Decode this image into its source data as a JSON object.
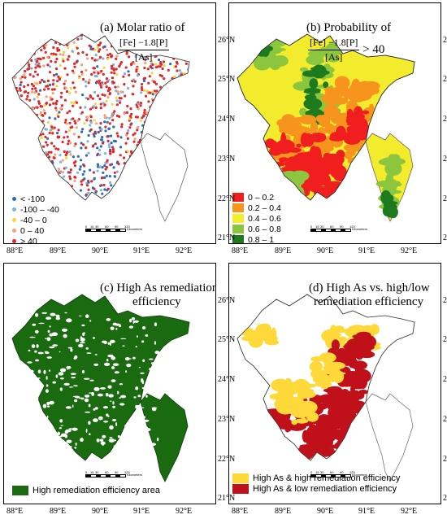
{
  "panels": {
    "a": {
      "title_line1": "(a) Molar ratio of",
      "frac_num": "[Fe] −1.8[P]",
      "frac_den": "[As]"
    },
    "b": {
      "title_line1": "(b) Probability of",
      "frac_num": "[Fe] −1.8[P]",
      "frac_den": "[As]",
      "suffix": "> 40"
    },
    "c": {
      "title_line1": "(c) High As remediation",
      "title_line2": "efficiency"
    },
    "d": {
      "title_line1": "(d) High As vs. high/low",
      "title_line2": "remediation efficiency"
    }
  },
  "axes": {
    "lat_top": [
      "26°N",
      "25°N",
      "24°N",
      "23°N",
      "22°N",
      "21°N"
    ],
    "lon_bottom": [
      "88°E",
      "89°E",
      "90°E",
      "91°E",
      "92°E"
    ]
  },
  "legend_a": [
    {
      "label": "< -100",
      "color": "#2b6cb8"
    },
    {
      "label": "-100 – -40",
      "color": "#7fb2dd"
    },
    {
      "label": "-40 – 0",
      "color": "#f2d73a"
    },
    {
      "label": "0 – 40",
      "color": "#f4a07a"
    },
    {
      "label": "> 40",
      "color": "#e0282a"
    }
  ],
  "legend_b": [
    {
      "label": "0 – 0.2",
      "color": "#f01e1e"
    },
    {
      "label": "0.2 – 0.4",
      "color": "#f7941d"
    },
    {
      "label": "0.4 – 0.6",
      "color": "#f2ec2c"
    },
    {
      "label": "0.6 – 0.8",
      "color": "#8cc63f"
    },
    {
      "label": "0.8 – 1",
      "color": "#1e7a1e"
    }
  ],
  "legend_c": [
    {
      "label": "High remediation efficiency area",
      "color": "#1a6b10"
    }
  ],
  "legend_d": [
    {
      "label": "High As & high remediation efficiency",
      "color": "#ffd83a"
    },
    {
      "label": "High As & low remediation efficiency",
      "color": "#c0111b"
    }
  ],
  "scalebar": {
    "ticks": [
      "0",
      "15",
      "30",
      "60",
      "90",
      "120"
    ],
    "unit": "Kilometers"
  }
}
